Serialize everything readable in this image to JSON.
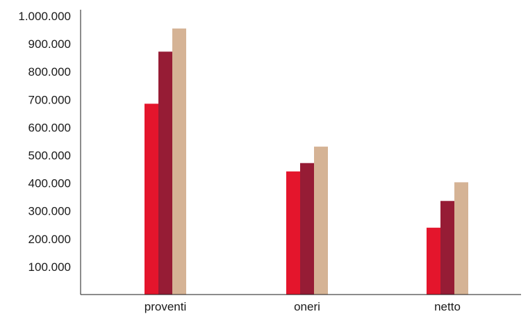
{
  "chart_data": {
    "type": "bar",
    "categories": [
      "proventi",
      "oneri",
      "netto"
    ],
    "series": [
      {
        "values": [
          685000,
          442000,
          240000
        ],
        "color": "#e4152c"
      },
      {
        "values": [
          872000,
          472000,
          336000
        ],
        "color": "#961c35"
      },
      {
        "values": [
          955000,
          531000,
          403000
        ],
        "color": "#d5b395"
      }
    ],
    "y_ticks": [
      {
        "value": 100000,
        "label": "100.000"
      },
      {
        "value": 200000,
        "label": "200.000"
      },
      {
        "value": 300000,
        "label": "300.000"
      },
      {
        "value": 400000,
        "label": "400.000"
      },
      {
        "value": 500000,
        "label": "500.000"
      },
      {
        "value": 600000,
        "label": "600.000"
      },
      {
        "value": 700000,
        "label": "700.000"
      },
      {
        "value": 800000,
        "label": "800.000"
      },
      {
        "value": 900000,
        "label": "900.000"
      },
      {
        "value": 1000000,
        "label": "1.000.000"
      }
    ],
    "ylim": [
      0,
      1000000
    ],
    "grid": false,
    "legend": "none"
  }
}
